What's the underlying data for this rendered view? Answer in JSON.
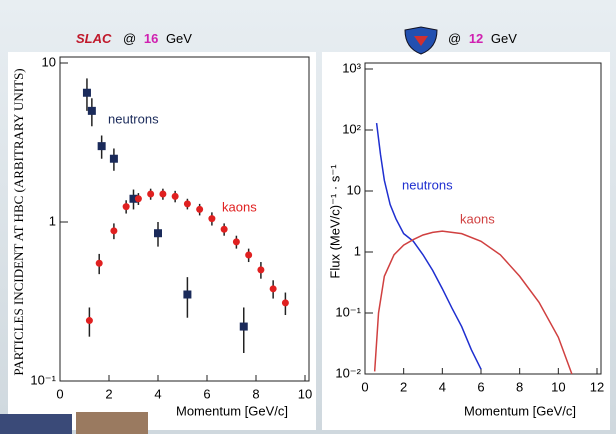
{
  "chart_data": [
    {
      "type": "scatter",
      "header": {
        "logo": "SLAC",
        "at": "@",
        "energy": "16",
        "unit": "GeV"
      },
      "xlabel": "Momentum [GeV/c]",
      "ylabel": "PARTICLES INCIDENT AT HBC (ARBITRARY UNITS)",
      "xlim": [
        0,
        10
      ],
      "xticks": [
        0,
        2,
        4,
        6,
        8,
        10
      ],
      "ylim": [
        0.1,
        10
      ],
      "yticks": [
        {
          "value": 0.1,
          "label": "10⁻¹"
        },
        1,
        10
      ],
      "log_y": true,
      "series": [
        {
          "name": "neutrons",
          "color": "#1a2a5a",
          "marker": "square",
          "x": [
            1.1,
            1.3,
            1.7,
            2.2,
            3.0,
            4.0,
            5.2,
            7.5
          ],
          "values": [
            6.5,
            5,
            3,
            2.5,
            1.4,
            0.85,
            0.35,
            0.22
          ],
          "errors": [
            1.5,
            1,
            0.5,
            0.4,
            0.2,
            0.15,
            0.1,
            0.07
          ]
        },
        {
          "name": "kaons",
          "color": "#e02020",
          "marker": "circle",
          "x": [
            1.2,
            1.6,
            2.2,
            2.7,
            3.2,
            3.7,
            4.2,
            4.7,
            5.2,
            5.7,
            6.2,
            6.7,
            7.2,
            7.7,
            8.2,
            8.7,
            9.2
          ],
          "values": [
            0.24,
            0.55,
            0.88,
            1.25,
            1.4,
            1.5,
            1.5,
            1.45,
            1.3,
            1.2,
            1.05,
            0.9,
            0.75,
            0.62,
            0.5,
            0.38,
            0.31
          ],
          "errors": [
            0.05,
            0.08,
            0.1,
            0.12,
            0.12,
            0.12,
            0.12,
            0.12,
            0.1,
            0.1,
            0.1,
            0.08,
            0.07,
            0.06,
            0.06,
            0.05,
            0.05
          ]
        }
      ]
    },
    {
      "type": "line",
      "header": {
        "at": "@",
        "energy": "12",
        "unit": "GeV"
      },
      "xlabel": "Momentum [GeV/c]",
      "ylabel": "Flux (MeV/c)⁻¹ · s⁻¹",
      "xlim": [
        0,
        12
      ],
      "xticks": [
        0,
        2,
        4,
        6,
        8,
        10,
        12
      ],
      "ylim": [
        0.01,
        1000
      ],
      "yticks": [
        {
          "value": 0.01,
          "label": "10⁻²"
        },
        {
          "value": 0.1,
          "label": "10⁻¹"
        },
        1,
        10,
        {
          "value": 100,
          "label": "10²"
        },
        {
          "value": 1000,
          "label": "10³"
        }
      ],
      "log_y": true,
      "series": [
        {
          "name": "neutrons",
          "color": "#1f2fd0",
          "x": [
            0.6,
            0.8,
            1,
            1.3,
            1.6,
            2,
            2.5,
            3,
            3.5,
            4,
            4.5,
            5,
            5.5,
            6
          ],
          "values": [
            130,
            40,
            15,
            6,
            3.5,
            2,
            1.5,
            0.9,
            0.5,
            0.25,
            0.12,
            0.06,
            0.025,
            0.012
          ]
        },
        {
          "name": "kaons",
          "color": "#d04040",
          "x": [
            0.5,
            0.7,
            1,
            1.5,
            2,
            2.5,
            3,
            3.5,
            4,
            5,
            6,
            7,
            8,
            9,
            10,
            10.7
          ],
          "values": [
            0.011,
            0.1,
            0.4,
            0.9,
            1.3,
            1.6,
            1.9,
            2.1,
            2.2,
            2,
            1.5,
            0.9,
            0.4,
            0.15,
            0.04,
            0.01
          ]
        }
      ]
    }
  ]
}
